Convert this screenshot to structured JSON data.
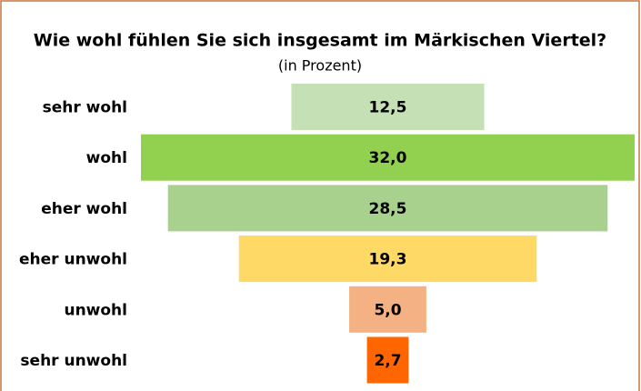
{
  "chart_data": {
    "type": "funnel",
    "title": "Wie wohl fühlen Sie sich insgesamt im Märkischen Viertel?",
    "subtitle": "(in Prozent)",
    "categories": [
      "sehr wohl",
      "wohl",
      "eher wohl",
      "eher unwohl",
      "unwohl",
      "sehr unwohl"
    ],
    "values": [
      12.5,
      32.0,
      28.5,
      19.3,
      5.0,
      2.7
    ],
    "value_labels": [
      "12,5",
      "32,0",
      "28,5",
      "19,3",
      "5,0",
      "2,7"
    ],
    "colors": [
      "#c5e0b4",
      "#92d050",
      "#a9d18e",
      "#ffd966",
      "#f4b183",
      "#ff6600"
    ]
  }
}
